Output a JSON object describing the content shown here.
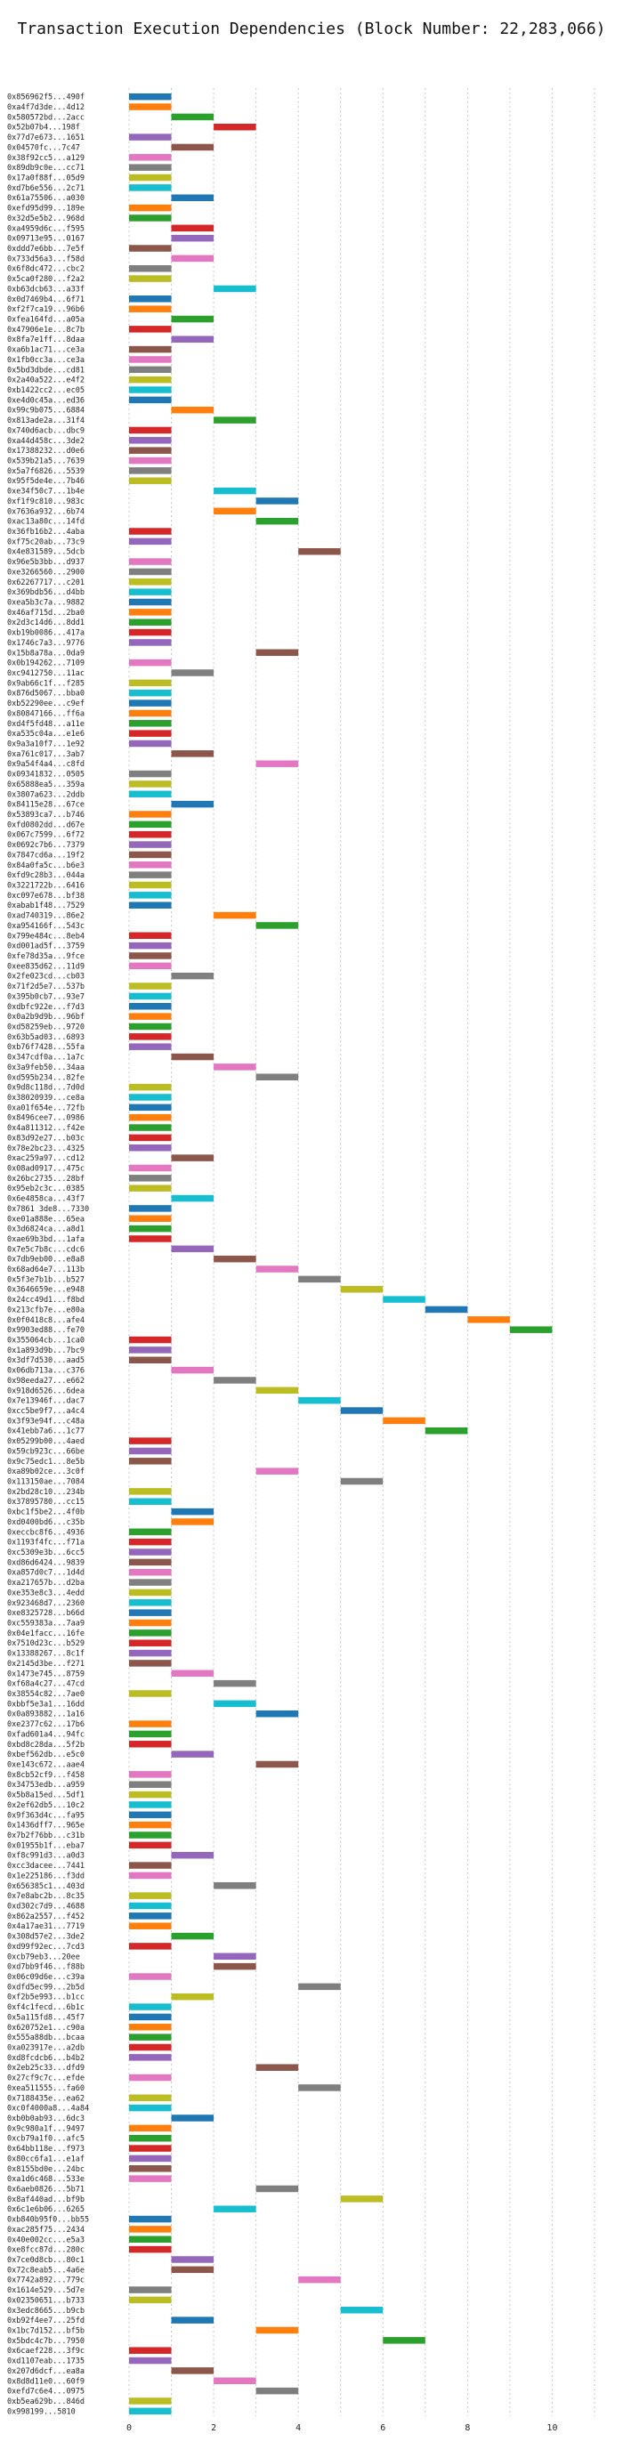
{
  "chart_data": {
    "type": "bar",
    "orientation": "horizontal-gantt",
    "title": "Transaction Execution Dependencies (Block Number: 22,283,066)",
    "xlabel": "",
    "ylabel": "",
    "xlim": [
      0,
      11
    ],
    "x_ticks": [
      0,
      2,
      4,
      6,
      8,
      10
    ],
    "grid": "vertical dotted lines at integer x",
    "legend": "none",
    "palette": [
      "#1f77b4",
      "#ff7f0e",
      "#2ca02c",
      "#d62728",
      "#9467bd",
      "#8c564b",
      "#e377c2",
      "#7f7f7f",
      "#bcbd22",
      "#17becf"
    ],
    "transactions": [
      {
        "label": "0x856962f5...490f",
        "start": 0
      },
      {
        "label": "0xa4f7d3de...4d12",
        "start": 0
      },
      {
        "label": "0x580572bd...2acc",
        "start": 1
      },
      {
        "label": "0x52b07b4...198f",
        "start": 2
      },
      {
        "label": "0x77d7e673...1651",
        "start": 0
      },
      {
        "label": "0x04570fc...7c47",
        "start": 1
      },
      {
        "label": "0x38f92cc5...a129",
        "start": 0
      },
      {
        "label": "0x89db9c0e...cc71",
        "start": 0
      },
      {
        "label": "0x17a0f88f...05d9",
        "start": 0
      },
      {
        "label": "0xd7b6e556...2c71",
        "start": 0
      },
      {
        "label": "0x61a75506...a030",
        "start": 1
      },
      {
        "label": "0xefd95d99...189e",
        "start": 0
      },
      {
        "label": "0x32d5e5b2...968d",
        "start": 0
      },
      {
        "label": "0xa4959d6c...f595",
        "start": 1
      },
      {
        "label": "0x09713e95...0167",
        "start": 1
      },
      {
        "label": "0xddd7e6bb...7e5f",
        "start": 0
      },
      {
        "label": "0x733d56a3...f58d",
        "start": 1
      },
      {
        "label": "0x6f8dc472...cbc2",
        "start": 0
      },
      {
        "label": "0x5ca0f280...f2a2",
        "start": 0
      },
      {
        "label": "0xb63dcb63...a33f",
        "start": 2
      },
      {
        "label": "0x0d7469b4...6f71",
        "start": 0
      },
      {
        "label": "0xf2f7ca19...96b6",
        "start": 0
      },
      {
        "label": "0xfea164fd...a05a",
        "start": 1
      },
      {
        "label": "0x47906e1e...8c7b",
        "start": 0
      },
      {
        "label": "0x8fa7e1ff...8daa",
        "start": 1
      },
      {
        "label": "0xa6b1ac71...ce3a",
        "start": 0
      },
      {
        "label": "0x1fb0cc3a...ce3a",
        "start": 0
      },
      {
        "label": "0x5bd3dbde...cd81",
        "start": 0
      },
      {
        "label": "0x2a40a522...e4f2",
        "start": 0
      },
      {
        "label": "0xb1422cc2...ec05",
        "start": 0
      },
      {
        "label": "0xe4d0c45a...ed36",
        "start": 0
      },
      {
        "label": "0x99c9b075...6884",
        "start": 1
      },
      {
        "label": "0x813ade2a...31f4",
        "start": 2
      },
      {
        "label": "0x740d6acb...dbc9",
        "start": 0
      },
      {
        "label": "0xa44d458c...3de2",
        "start": 0
      },
      {
        "label": "0x17388232...d0e6",
        "start": 0
      },
      {
        "label": "0x539b21a5...7639",
        "start": 0
      },
      {
        "label": "0x5a7f6826...5539",
        "start": 0
      },
      {
        "label": "0x95f5de4e...7b46",
        "start": 0
      },
      {
        "label": "0xe34f50c7...1b4e",
        "start": 2
      },
      {
        "label": "0xf1f9c810...983c",
        "start": 3
      },
      {
        "label": "0x7636a932...6b74",
        "start": 2
      },
      {
        "label": "0xac13a80c...14fd",
        "start": 3
      },
      {
        "label": "0x36fb16b2...4aba",
        "start": 0
      },
      {
        "label": "0xf75c20ab...73c9",
        "start": 0
      },
      {
        "label": "0x4e831589...5dcb",
        "start": 4
      },
      {
        "label": "0x96e5b3bb...d937",
        "start": 0
      },
      {
        "label": "0xe3266560...2900",
        "start": 0
      },
      {
        "label": "0x62267717...c201",
        "start": 0
      },
      {
        "label": "0x369bdb56...d4bb",
        "start": 0
      },
      {
        "label": "0xea5b3c7a...9882",
        "start": 0
      },
      {
        "label": "0x46af715d...2ba0",
        "start": 0
      },
      {
        "label": "0x2d3c14d6...8dd1",
        "start": 0
      },
      {
        "label": "0xb19b0086...417a",
        "start": 0
      },
      {
        "label": "0x1746c7a3...9776",
        "start": 0
      },
      {
        "label": "0x15b8a78a...0da9",
        "start": 3
      },
      {
        "label": "0x0b194262...7109",
        "start": 0
      },
      {
        "label": "0xc9412750...11ac",
        "start": 1
      },
      {
        "label": "0x9ab66c1f...f285",
        "start": 0
      },
      {
        "label": "0x876d5067...bba0",
        "start": 0
      },
      {
        "label": "0xb52290ee...c9ef",
        "start": 0
      },
      {
        "label": "0x80847166...ff6a",
        "start": 0
      },
      {
        "label": "0xd4f5fd48...a11e",
        "start": 0
      },
      {
        "label": "0xa535c04a...e1e6",
        "start": 0
      },
      {
        "label": "0x9a3a10f7...1e92",
        "start": 0
      },
      {
        "label": "0xa761c017...3ab7",
        "start": 1
      },
      {
        "label": "0x9a54f4a4...c8fd",
        "start": 3
      },
      {
        "label": "0x09341832...0505",
        "start": 0
      },
      {
        "label": "0x65888ea5...359a",
        "start": 0
      },
      {
        "label": "0x3807a623...2ddb",
        "start": 0
      },
      {
        "label": "0x84115e28...67ce",
        "start": 1
      },
      {
        "label": "0x53893ca7...b746",
        "start": 0
      },
      {
        "label": "0xfd0802dd...d67e",
        "start": 0
      },
      {
        "label": "0x067c7599...6f72",
        "start": 0
      },
      {
        "label": "0x0692c7b6...7379",
        "start": 0
      },
      {
        "label": "0x7847cd6a...19f2",
        "start": 0
      },
      {
        "label": "0x84a0fa5c...b6e3",
        "start": 0
      },
      {
        "label": "0xfd9c28b3...044a",
        "start": 0
      },
      {
        "label": "0x3221722b...6416",
        "start": 0
      },
      {
        "label": "0xc097e678...bf38",
        "start": 0
      },
      {
        "label": "0xabab1f48...7529",
        "start": 0
      },
      {
        "label": "0xad740319...86e2",
        "start": 2
      },
      {
        "label": "0xa954166f...543c",
        "start": 3
      },
      {
        "label": "0x799e484c...8eb4",
        "start": 0
      },
      {
        "label": "0xd001ad5f...3759",
        "start": 0
      },
      {
        "label": "0xfe78d35a...9fce",
        "start": 0
      },
      {
        "label": "0xee835d62...11d9",
        "start": 0
      },
      {
        "label": "0x2fe023cd...cb03",
        "start": 1
      },
      {
        "label": "0x71f2d5e7...537b",
        "start": 0
      },
      {
        "label": "0x395b0cb7...93e7",
        "start": 0
      },
      {
        "label": "0xdbfc922e...f7d3",
        "start": 0
      },
      {
        "label": "0x0a2b9d9b...96bf",
        "start": 0
      },
      {
        "label": "0xd58259eb...9720",
        "start": 0
      },
      {
        "label": "0x63b5ad03...6893",
        "start": 0
      },
      {
        "label": "0xb76f7428...55fa",
        "start": 0
      },
      {
        "label": "0x347cdf0a...1a7c",
        "start": 1
      },
      {
        "label": "0x3a9feb50...34aa",
        "start": 2
      },
      {
        "label": "0xd595b234...82fe",
        "start": 3
      },
      {
        "label": "0x9d8c118d...7d0d",
        "start": 0
      },
      {
        "label": "0x38020939...ce8a",
        "start": 0
      },
      {
        "label": "0xa01f654e...72fb",
        "start": 0
      },
      {
        "label": "0x8496cee7...0986",
        "start": 0
      },
      {
        "label": "0x4a811312...f42e",
        "start": 0
      },
      {
        "label": "0x83d92e27...b03c",
        "start": 0
      },
      {
        "label": "0x78e2bc23...4325",
        "start": 0
      },
      {
        "label": "0xac259a97...cd12",
        "start": 1
      },
      {
        "label": "0x08ad0917...475c",
        "start": 0
      },
      {
        "label": "0x26bc2735...28bf",
        "start": 0
      },
      {
        "label": "0x95eb2c3c...0385",
        "start": 0
      },
      {
        "label": "0x6e4858ca...43f7",
        "start": 1
      },
      {
        "label": "0x7861 3de8...7330",
        "start": 0
      },
      {
        "label": "0xe01a888e...65ea",
        "start": 0
      },
      {
        "label": "0x3d6824ca...a8d1",
        "start": 0
      },
      {
        "label": "0xae69b3bd...1afa",
        "start": 0
      },
      {
        "label": "0x7e5c7b8c...cdc6",
        "start": 1
      },
      {
        "label": "0x7db9eb00...e8a8",
        "start": 2
      },
      {
        "label": "0x68ad64e7...113b",
        "start": 3
      },
      {
        "label": "0x5f3e7b1b...b527",
        "start": 4
      },
      {
        "label": "0x3646659e...e948",
        "start": 5
      },
      {
        "label": "0x24cc49d1...f8bd",
        "start": 6
      },
      {
        "label": "0x213cfb7e...e80a",
        "start": 7
      },
      {
        "label": "0x0f0418c8...afe4",
        "start": 8
      },
      {
        "label": "0x9903ed88...fe70",
        "start": 9
      },
      {
        "label": "0x355064cb...1ca0",
        "start": 0
      },
      {
        "label": "0x1a893d9b...7bc9",
        "start": 0
      },
      {
        "label": "0x3df7d530...aad5",
        "start": 0
      },
      {
        "label": "0x06db713a...c376",
        "start": 1
      },
      {
        "label": "0x98eeda27...e662",
        "start": 2
      },
      {
        "label": "0x918d6526...6dea",
        "start": 3
      },
      {
        "label": "0x7e13946f...dac7",
        "start": 4
      },
      {
        "label": "0xcc5be9f7...a4c4",
        "start": 5
      },
      {
        "label": "0x3f93e94f...c48a",
        "start": 6
      },
      {
        "label": "0x41ebb7a6...1c77",
        "start": 7
      },
      {
        "label": "0x05299b00...4aed",
        "start": 0
      },
      {
        "label": "0x59cb923c...66be",
        "start": 0
      },
      {
        "label": "0x9c75edc1...8e5b",
        "start": 0
      },
      {
        "label": "0xa89b02ce...3c0f",
        "start": 3
      },
      {
        "label": "0x113150ae...7084",
        "start": 5
      },
      {
        "label": "0x2bd28c10...234b",
        "start": 0
      },
      {
        "label": "0x37895780...cc15",
        "start": 0
      },
      {
        "label": "0xbc1f5be2...4f0b",
        "start": 1
      },
      {
        "label": "0xd0400bd6...c35b",
        "start": 1
      },
      {
        "label": "0xeccbc8f6...4936",
        "start": 0
      },
      {
        "label": "0x1193f4fc...f71a",
        "start": 0
      },
      {
        "label": "0xc5309e3b...6cc5",
        "start": 0
      },
      {
        "label": "0xd86d6424...9839",
        "start": 0
      },
      {
        "label": "0xa857d0c7...1d4d",
        "start": 0
      },
      {
        "label": "0xa217657b...d2ba",
        "start": 0
      },
      {
        "label": "0xe353e8c3...4edd",
        "start": 0
      },
      {
        "label": "0x923468d7...2360",
        "start": 0
      },
      {
        "label": "0xe8325728...b66d",
        "start": 0
      },
      {
        "label": "0xc559383a...7aa9",
        "start": 0
      },
      {
        "label": "0x04e1facc...16fe",
        "start": 0
      },
      {
        "label": "0x7510d23c...b529",
        "start": 0
      },
      {
        "label": "0x13388267...8c1f",
        "start": 0
      },
      {
        "label": "0x2145d3be...f271",
        "start": 0
      },
      {
        "label": "0x1473e745...8759",
        "start": 1
      },
      {
        "label": "0xf68a4c27...47cd",
        "start": 2
      },
      {
        "label": "0x38554c82...7ae0",
        "start": 0
      },
      {
        "label": "0xbbf5e3a1...16dd",
        "start": 2
      },
      {
        "label": "0x0a893882...1a16",
        "start": 3
      },
      {
        "label": "0xe2377c62...17b6",
        "start": 0
      },
      {
        "label": "0xfad601a4...94fc",
        "start": 0
      },
      {
        "label": "0xbd8c28da...5f2b",
        "start": 0
      },
      {
        "label": "0xbef562db...e5c0",
        "start": 1
      },
      {
        "label": "0xe143c672...aae4",
        "start": 3
      },
      {
        "label": "0x8cb52cf9...f458",
        "start": 0
      },
      {
        "label": "0x34753edb...a959",
        "start": 0
      },
      {
        "label": "0x5b8a15ed...5df1",
        "start": 0
      },
      {
        "label": "0x2ef62db5...10c2",
        "start": 0
      },
      {
        "label": "0x9f363d4c...fa95",
        "start": 0
      },
      {
        "label": "0x1436dff7...965e",
        "start": 0
      },
      {
        "label": "0x7b2f76bb...c31b",
        "start": 0
      },
      {
        "label": "0x01955b1f...eba7",
        "start": 0
      },
      {
        "label": "0xf8c991d3...a0d3",
        "start": 1
      },
      {
        "label": "0xcc3dacee...7441",
        "start": 0
      },
      {
        "label": "0x1e225186...f3dd",
        "start": 0
      },
      {
        "label": "0x656385c1...403d",
        "start": 2
      },
      {
        "label": "0x7e8abc2b...8c35",
        "start": 0
      },
      {
        "label": "0xd302c7d9...4688",
        "start": 0
      },
      {
        "label": "0x862a2557...f452",
        "start": 0
      },
      {
        "label": "0x4a17ae31...7719",
        "start": 0
      },
      {
        "label": "0x308d57e2...3de2",
        "start": 1
      },
      {
        "label": "0xd99f92ec...7cd3",
        "start": 0
      },
      {
        "label": "0xcb79eb3...20ee",
        "start": 2
      },
      {
        "label": "0xd7bb9f46...f88b",
        "start": 2
      },
      {
        "label": "0x06c09d6e...c39a",
        "start": 0
      },
      {
        "label": "0xdfd5ec99...2b5d",
        "start": 4
      },
      {
        "label": "0xf2b5e993...b1cc",
        "start": 1
      },
      {
        "label": "0xf4c1fecd...6b1c",
        "start": 0
      },
      {
        "label": "0x5a115fd8...45f7",
        "start": 0
      },
      {
        "label": "0x620752e1...c90a",
        "start": 0
      },
      {
        "label": "0x555a88db...bcaa",
        "start": 0
      },
      {
        "label": "0xa023917e...a2db",
        "start": 0
      },
      {
        "label": "0xd8fcdcb6...b4b2",
        "start": 0
      },
      {
        "label": "0x2eb25c33...dfd9",
        "start": 3
      },
      {
        "label": "0x27cf9c7c...efde",
        "start": 0
      },
      {
        "label": "0xea511555...fa60",
        "start": 4
      },
      {
        "label": "0x7188435e...ea62",
        "start": 0
      },
      {
        "label": "0xc0f4000a8...4a84",
        "start": 0
      },
      {
        "label": "0xb0b0ab93...6dc3",
        "start": 1
      },
      {
        "label": "0x9c980a1f...9497",
        "start": 0
      },
      {
        "label": "0xcb79a1f0...afc5",
        "start": 0
      },
      {
        "label": "0x64bb118e...f973",
        "start": 0
      },
      {
        "label": "0x80cc6fa1...e1af",
        "start": 0
      },
      {
        "label": "0x8155bd0e...24bc",
        "start": 0
      },
      {
        "label": "0xa1d6c468...533e",
        "start": 0
      },
      {
        "label": "0x6aeb0826...5b71",
        "start": 3
      },
      {
        "label": "0x8af440ad...bf9b",
        "start": 5
      },
      {
        "label": "0x6c1e6b06...6265",
        "start": 2
      },
      {
        "label": "0xb840b95f0...bb55",
        "start": 0
      },
      {
        "label": "0xac285f75...2434",
        "start": 0
      },
      {
        "label": "0x40e002cc...e5a3",
        "start": 0
      },
      {
        "label": "0xe8fcc87d...280c",
        "start": 0
      },
      {
        "label": "0x7ce0d8cb...80c1",
        "start": 1
      },
      {
        "label": "0x72c8eab5...4a6e",
        "start": 1
      },
      {
        "label": "0x7742a892...779c",
        "start": 4
      },
      {
        "label": "0x1614e529...5d7e",
        "start": 0
      },
      {
        "label": "0x02350651...b733",
        "start": 0
      },
      {
        "label": "0x3edc8665...b9cb",
        "start": 5
      },
      {
        "label": "0xb92f4ee7...25fd",
        "start": 1
      },
      {
        "label": "0x1bc7d152...bf5b",
        "start": 3
      },
      {
        "label": "0x5bdc4c7b...7950",
        "start": 6
      },
      {
        "label": "0x6caef228...3f9c",
        "start": 0
      },
      {
        "label": "0xd1107eab...1735",
        "start": 0
      },
      {
        "label": "0x207d6dcf...ea8a",
        "start": 1
      },
      {
        "label": "0x8d8d11e0...60f9",
        "start": 2
      },
      {
        "label": "0xefd7c6e4...0975",
        "start": 3
      },
      {
        "label": "0xb5ea629b...846d",
        "start": 0
      },
      {
        "label": "0x998199...5810",
        "start": 0
      }
    ]
  }
}
